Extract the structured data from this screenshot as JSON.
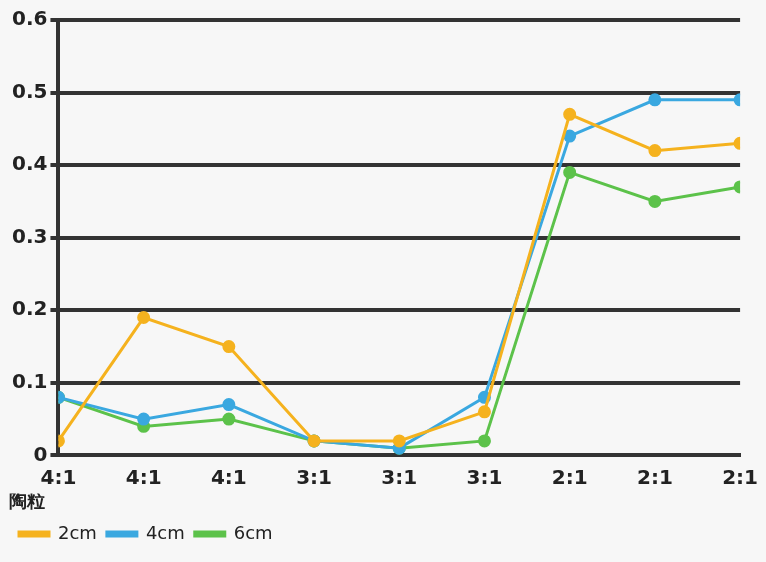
{
  "chart_data": {
    "type": "line",
    "categories": [
      "4:1",
      "4:1",
      "4:1",
      "3:1",
      "3:1",
      "3:1",
      "2:1",
      "2:1",
      "2:1"
    ],
    "series": [
      {
        "name": "2cm",
        "color": "#f5b21e",
        "values": [
          0.02,
          0.19,
          0.15,
          0.02,
          0.02,
          0.06,
          0.47,
          0.42,
          0.43
        ]
      },
      {
        "name": "4cm",
        "color": "#3aa8e0",
        "values": [
          0.08,
          0.05,
          0.07,
          0.02,
          0.01,
          0.08,
          0.44,
          0.49,
          0.49
        ]
      },
      {
        "name": "6cm",
        "color": "#5cc24a",
        "values": [
          0.08,
          0.04,
          0.05,
          0.02,
          0.01,
          0.02,
          0.39,
          0.35,
          0.37
        ]
      }
    ],
    "legend_title": "陶粒",
    "legend": "bottom",
    "marker": "circle",
    "ylim": [
      0,
      0.6
    ],
    "yticks": [
      0,
      0.1,
      0.2,
      0.3,
      0.4,
      0.5,
      0.6
    ],
    "grid": true
  }
}
